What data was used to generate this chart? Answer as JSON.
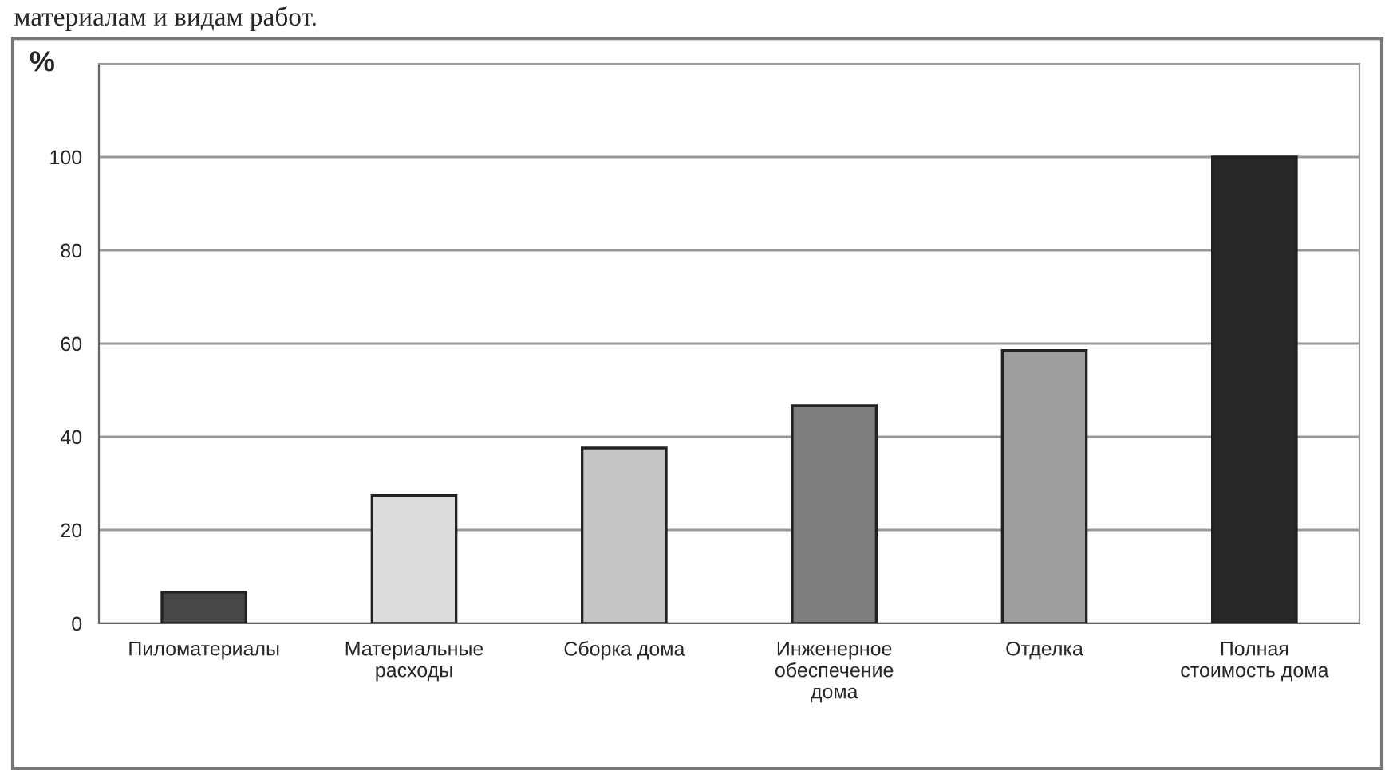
{
  "chart_data": {
    "type": "bar",
    "ylabel": "%",
    "annotations": [
      "материалам и видам работ."
    ],
    "categories": [
      "Пиломатериалы",
      "Материальные\nрасходы",
      "Сборка дома",
      "Инженерное\nобеспечение\nдома",
      "Отделка",
      "Полная\nстоимость дома"
    ],
    "values": [
      6.7,
      27.4,
      37.6,
      46.7,
      58.5,
      100
    ],
    "colors": [
      "#474747",
      "#dcdcdc",
      "#c6c6c6",
      "#7f7f7f",
      "#9e9e9e",
      "#282828"
    ],
    "ylim": [
      0,
      120
    ],
    "yticks": [
      0,
      20,
      40,
      60,
      80,
      100
    ],
    "grid": "y",
    "legend": false
  }
}
